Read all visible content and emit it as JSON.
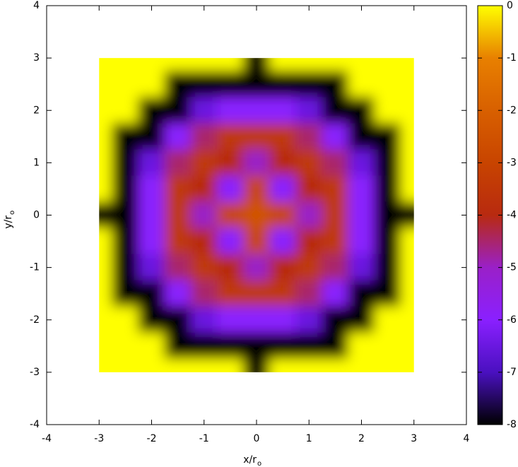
{
  "chart_data": {
    "type": "heatmap",
    "xlabel": "x/r",
    "xlabel_subscript": "o",
    "ylabel": "y/r",
    "ylabel_subscript": "o",
    "xlim": [
      -4,
      4
    ],
    "ylim": [
      -4,
      4
    ],
    "xticks": [
      -4,
      -3,
      -2,
      -1,
      0,
      1,
      2,
      3,
      4
    ],
    "yticks": [
      -4,
      -3,
      -2,
      -1,
      0,
      1,
      2,
      3,
      4
    ],
    "zlim": [
      -8,
      0
    ],
    "zticks": [
      0,
      -1,
      -2,
      -3,
      -4,
      -5,
      -6,
      -7,
      -8
    ],
    "colormap": [
      "#000000",
      "#4a10c0",
      "#8a20ff",
      "#9a20c8",
      "#b82a10",
      "#c84400",
      "#d86000",
      "#e88000",
      "#ffff00"
    ],
    "x": [
      -3,
      -2.5,
      -2,
      -1.5,
      -1,
      -0.5,
      0,
      0.5,
      1,
      1.5,
      2,
      2.5,
      3
    ],
    "y": [
      3,
      2.5,
      2,
      1.5,
      1,
      0.5,
      0,
      -0.5,
      -1,
      -1.5,
      -2,
      -2.5,
      -3
    ],
    "z": [
      [
        0,
        0,
        0,
        0,
        0,
        0,
        -8,
        0,
        0,
        0,
        0,
        0,
        0
      ],
      [
        0,
        0,
        0,
        -8,
        -8,
        -8,
        -8,
        -8,
        -8,
        -8,
        0,
        0,
        0
      ],
      [
        0,
        0,
        -8,
        -8,
        -6.5,
        -6,
        -6,
        -6,
        -6.5,
        -8,
        -8,
        0,
        0
      ],
      [
        0,
        -8,
        -8,
        -6,
        -4.5,
        -3.5,
        -3.5,
        -3.5,
        -4.5,
        -6,
        -8,
        -8,
        0
      ],
      [
        0,
        -8,
        -6.5,
        -4.5,
        -3.5,
        -4,
        -5,
        -4,
        -3.5,
        -4.5,
        -6.5,
        -8,
        0
      ],
      [
        0,
        -8,
        -6,
        -3.5,
        -4,
        -6,
        -3,
        -6,
        -4,
        -3.5,
        -6,
        -8,
        0
      ],
      [
        -8,
        -8,
        -6,
        -3.5,
        -5,
        -3,
        -2.5,
        -3,
        -5,
        -3.5,
        -6,
        -8,
        -8
      ],
      [
        0,
        -8,
        -6,
        -3.5,
        -4,
        -6,
        -3,
        -6,
        -4,
        -3.5,
        -6,
        -8,
        0
      ],
      [
        0,
        -8,
        -6.5,
        -4.5,
        -3.5,
        -4,
        -5,
        -4,
        -3.5,
        -4.5,
        -6.5,
        -8,
        0
      ],
      [
        0,
        -8,
        -8,
        -6,
        -4.5,
        -3.5,
        -3.5,
        -3.5,
        -4.5,
        -6,
        -8,
        -8,
        0
      ],
      [
        0,
        0,
        -8,
        -8,
        -6.5,
        -6,
        -6,
        -6,
        -6.5,
        -8,
        -8,
        0,
        0
      ],
      [
        0,
        0,
        0,
        -8,
        -8,
        -8,
        -8,
        -8,
        -8,
        -8,
        0,
        0,
        0
      ],
      [
        0,
        0,
        0,
        0,
        0,
        0,
        -8,
        0,
        0,
        0,
        0,
        0,
        0
      ]
    ]
  }
}
